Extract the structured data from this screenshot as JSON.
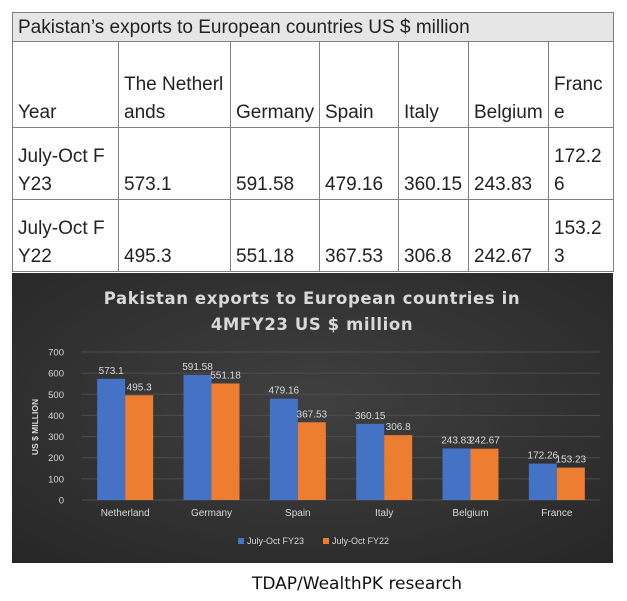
{
  "table": {
    "title": "Pakistan’s exports to European countries US $ million",
    "headers": [
      "Year",
      "The Netherlands",
      "Germany",
      "Spain",
      "Italy",
      "Belgium",
      "France"
    ],
    "rows": [
      [
        "July-Oct FY23",
        "573.1",
        "591.58",
        "479.16",
        "360.15",
        "243.83",
        "172.26"
      ],
      [
        "July-Oct FY22",
        "495.3",
        "551.18",
        "367.53",
        "306.8",
        "242.67",
        "153.23"
      ]
    ]
  },
  "chart_data": {
    "type": "bar",
    "title_line1": "Pakistan exports to European countries in",
    "title_line2": "4MFY23 US $ million",
    "ylabel": "US $ MILLION",
    "ylim": [
      0,
      700
    ],
    "yticks": [
      0,
      100,
      200,
      300,
      400,
      500,
      600,
      700
    ],
    "categories": [
      "Netherland",
      "Germany",
      "Spain",
      "Italy",
      "Belgium",
      "France"
    ],
    "series": [
      {
        "name": "July-Oct FY23",
        "values": [
          573.1,
          591.58,
          479.16,
          360.15,
          243.83,
          172.26
        ],
        "color": "#4472c4"
      },
      {
        "name": "July-Oct FY22",
        "values": [
          495.3,
          551.18,
          367.53,
          306.8,
          242.67,
          153.23
        ],
        "color": "#ed7d31"
      }
    ],
    "data_labels": true,
    "grid": true,
    "legend_position": "bottom"
  },
  "colors": {
    "panel_background": "#2e2e2e",
    "gridline": "#4d4d4d",
    "text": "#d9d9d9"
  },
  "source": "TDAP/WealthPK research"
}
